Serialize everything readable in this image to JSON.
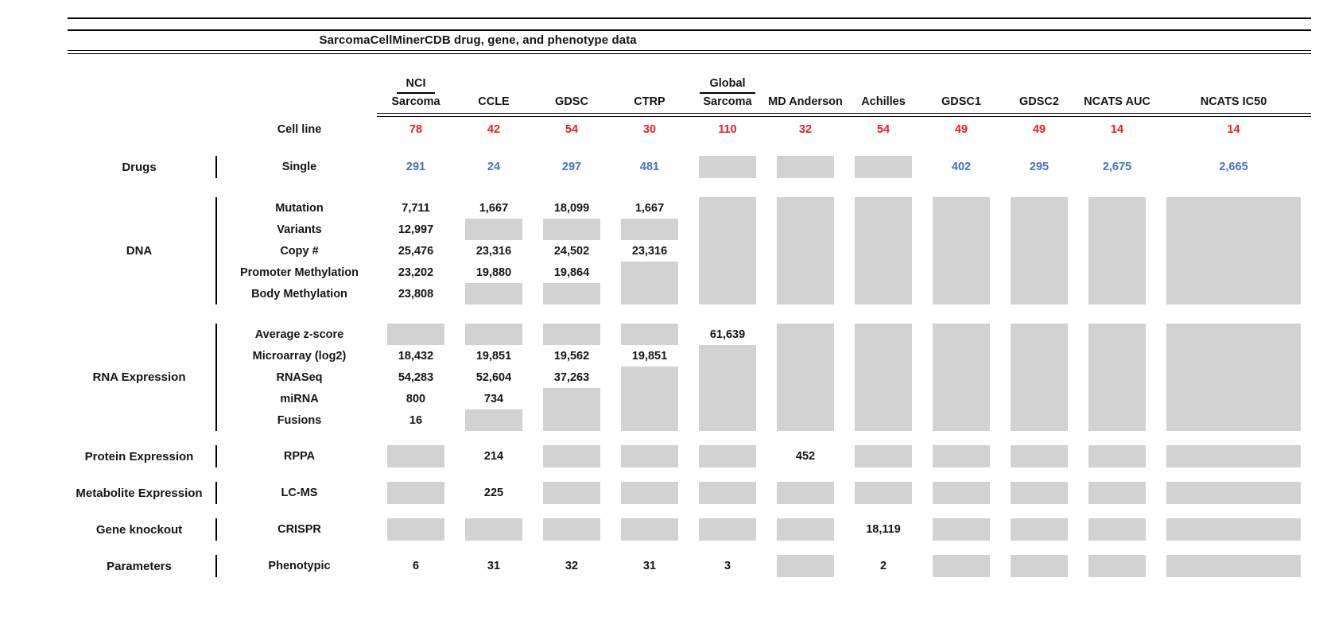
{
  "title": "SarcomaCellMinerCDB drug, gene, and phenotype data",
  "colors": {
    "red": "#ed1c24",
    "blue": "#4472c4",
    "gray_box": "#d2d2d2"
  },
  "missing_data_token": "G",
  "columns": [
    {
      "top": "NCI",
      "label": "Sarcoma"
    },
    {
      "label": "CCLE"
    },
    {
      "label": "GDSC"
    },
    {
      "label": "CTRP"
    },
    {
      "top": "Global",
      "label": "Sarcoma"
    },
    {
      "label": "MD Anderson"
    },
    {
      "label": "Achilles"
    },
    {
      "label": "GDSC1"
    },
    {
      "label": "GDSC2"
    },
    {
      "label": "NCATS AUC"
    },
    {
      "label": "NCATS IC50"
    }
  ],
  "cell_line_row": {
    "label": "Cell line",
    "values": [
      "78",
      "42",
      "54",
      "30",
      "110",
      "32",
      "54",
      "49",
      "49",
      "14",
      "14"
    ]
  },
  "sections": [
    {
      "category": "Drugs",
      "value_color": "blue",
      "rows": [
        {
          "label": "Single",
          "cells": [
            "291",
            "24",
            "297",
            "481",
            "G",
            "G",
            "G",
            "402",
            "295",
            "2,675",
            "2,665"
          ]
        }
      ]
    },
    {
      "category": "DNA",
      "rows": [
        {
          "label": "Mutation",
          "cells": [
            "7,711",
            "1,667",
            "18,099",
            "1,667",
            "G",
            "G",
            "G",
            "G",
            "G",
            "G",
            "G"
          ]
        },
        {
          "label": "Variants",
          "cells": [
            "12,997",
            "G",
            "G",
            "G",
            "G",
            "G",
            "G",
            "G",
            "G",
            "G",
            "G"
          ]
        },
        {
          "label": "Copy #",
          "cells": [
            "25,476",
            "23,316",
            "24,502",
            "23,316",
            "G",
            "G",
            "G",
            "G",
            "G",
            "G",
            "G"
          ]
        },
        {
          "label": "Promoter Methylation",
          "cells": [
            "23,202",
            "19,880",
            "19,864",
            "G",
            "G",
            "G",
            "G",
            "G",
            "G",
            "G",
            "G"
          ]
        },
        {
          "label": "Body Methylation",
          "cells": [
            "23,808",
            "G",
            "G",
            "G",
            "G",
            "G",
            "G",
            "G",
            "G",
            "G",
            "G"
          ]
        }
      ]
    },
    {
      "category": "RNA Expression",
      "rows": [
        {
          "label": "Average z-score",
          "cells": [
            "G",
            "G",
            "G",
            "G",
            "61,639",
            "G",
            "G",
            "G",
            "G",
            "G",
            "G"
          ]
        },
        {
          "label": "Microarray (log2)",
          "cells": [
            "18,432",
            "19,851",
            "19,562",
            "19,851",
            "G",
            "G",
            "G",
            "G",
            "G",
            "G",
            "G"
          ]
        },
        {
          "label": "RNASeq",
          "cells": [
            "54,283",
            "52,604",
            "37,263",
            "G",
            "G",
            "G",
            "G",
            "G",
            "G",
            "G",
            "G"
          ]
        },
        {
          "label": "miRNA",
          "cells": [
            "800",
            "734",
            "G",
            "G",
            "G",
            "G",
            "G",
            "G",
            "G",
            "G",
            "G"
          ]
        },
        {
          "label": "Fusions",
          "cells": [
            "16",
            "G",
            "G",
            "G",
            "G",
            "G",
            "G",
            "G",
            "G",
            "G",
            "G"
          ]
        }
      ]
    },
    {
      "category": "Protein Expression",
      "rows": [
        {
          "label": "RPPA",
          "cells": [
            "G",
            "214",
            "G",
            "G",
            "G",
            "452",
            "G",
            "G",
            "G",
            "G",
            "G"
          ]
        }
      ]
    },
    {
      "category": "Metabolite Expression",
      "rows": [
        {
          "label": "LC-MS",
          "cells": [
            "G",
            "225",
            "G",
            "G",
            "G",
            "G",
            "G",
            "G",
            "G",
            "G",
            "G"
          ]
        }
      ]
    },
    {
      "category": "Gene knockout",
      "rows": [
        {
          "label": "CRISPR",
          "cells": [
            "G",
            "G",
            "G",
            "G",
            "G",
            "G",
            "18,119",
            "G",
            "G",
            "G",
            "G"
          ]
        }
      ]
    },
    {
      "category": "Parameters",
      "rows": [
        {
          "label": "Phenotypic",
          "cells": [
            "6",
            "31",
            "32",
            "31",
            "3",
            "G",
            "2",
            "G",
            "G",
            "G",
            "G"
          ]
        }
      ]
    }
  ]
}
